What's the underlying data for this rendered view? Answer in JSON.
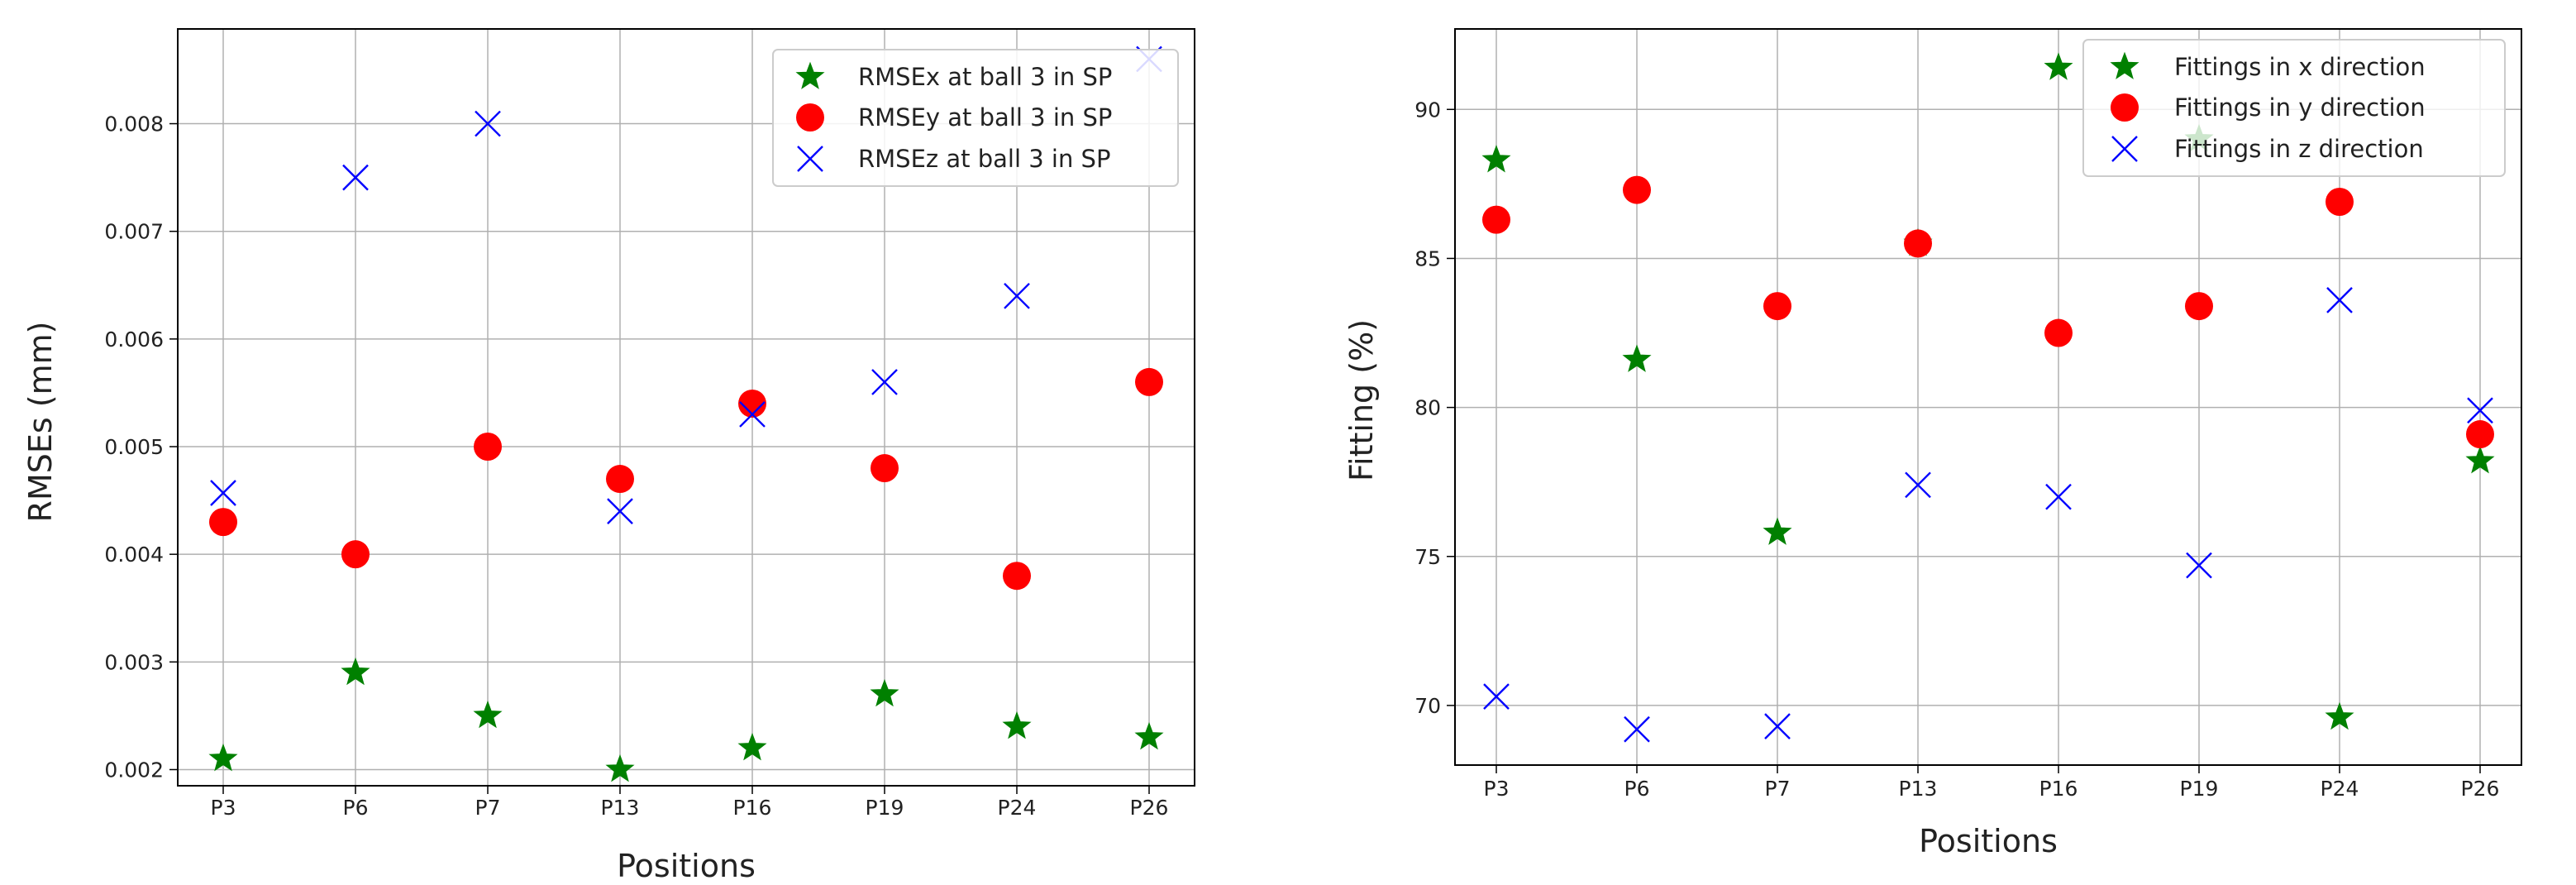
{
  "chart_data": [
    {
      "type": "scatter",
      "title": "",
      "xlabel": "Positions",
      "ylabel": "RMSEs (mm)",
      "categories": [
        "P3",
        "P6",
        "P7",
        "P13",
        "P16",
        "P19",
        "P24",
        "P26"
      ],
      "ylim": [
        0.00185,
        0.00888
      ],
      "yticks": [
        0.002,
        0.003,
        0.004,
        0.005,
        0.006,
        0.007,
        0.008
      ],
      "ytick_labels": [
        "0.002",
        "0.003",
        "0.004",
        "0.005",
        "0.006",
        "0.007",
        "0.008"
      ],
      "grid": true,
      "legend_position": "top-right",
      "series": [
        {
          "name": "RMSEx at ball 3 in SP",
          "marker": "star",
          "color": "#008000",
          "values": [
            0.0021,
            0.0029,
            0.0025,
            0.002,
            0.0022,
            0.0027,
            0.0024,
            0.0023
          ]
        },
        {
          "name": "RMSEy at ball 3 in SP",
          "marker": "circle",
          "color": "#ff0000",
          "values": [
            0.0043,
            0.004,
            0.005,
            0.0047,
            0.0054,
            0.0048,
            0.0038,
            0.0056
          ]
        },
        {
          "name": "RMSEz at ball 3 in SP",
          "marker": "x",
          "color": "#0000ff",
          "values": [
            0.00457,
            0.0075,
            0.008,
            0.0044,
            0.0053,
            0.0056,
            0.0064,
            0.0086
          ]
        }
      ]
    },
    {
      "type": "scatter",
      "title": "",
      "xlabel": "Positions",
      "ylabel": "Fitting (%)",
      "categories": [
        "P3",
        "P6",
        "P7",
        "P13",
        "P16",
        "P19",
        "P24",
        "P26"
      ],
      "ylim": [
        68.0,
        92.7
      ],
      "yticks": [
        70,
        75,
        80,
        85,
        90
      ],
      "ytick_labels": [
        "70",
        "75",
        "80",
        "85",
        "90"
      ],
      "grid": true,
      "legend_position": "top-right",
      "series": [
        {
          "name": "Fittings in x direction",
          "marker": "star",
          "color": "#008000",
          "values": [
            88.3,
            81.6,
            75.8,
            85.5,
            91.4,
            89.0,
            69.6,
            78.2
          ]
        },
        {
          "name": "Fittings in y direction",
          "marker": "circle",
          "color": "#ff0000",
          "values": [
            86.3,
            87.3,
            83.4,
            85.5,
            82.5,
            83.4,
            86.9,
            79.1
          ]
        },
        {
          "name": "Fittings in z direction",
          "marker": "x",
          "color": "#0000ff",
          "values": [
            70.3,
            69.2,
            69.3,
            77.4,
            77.0,
            74.7,
            83.6,
            79.9
          ]
        }
      ]
    }
  ]
}
